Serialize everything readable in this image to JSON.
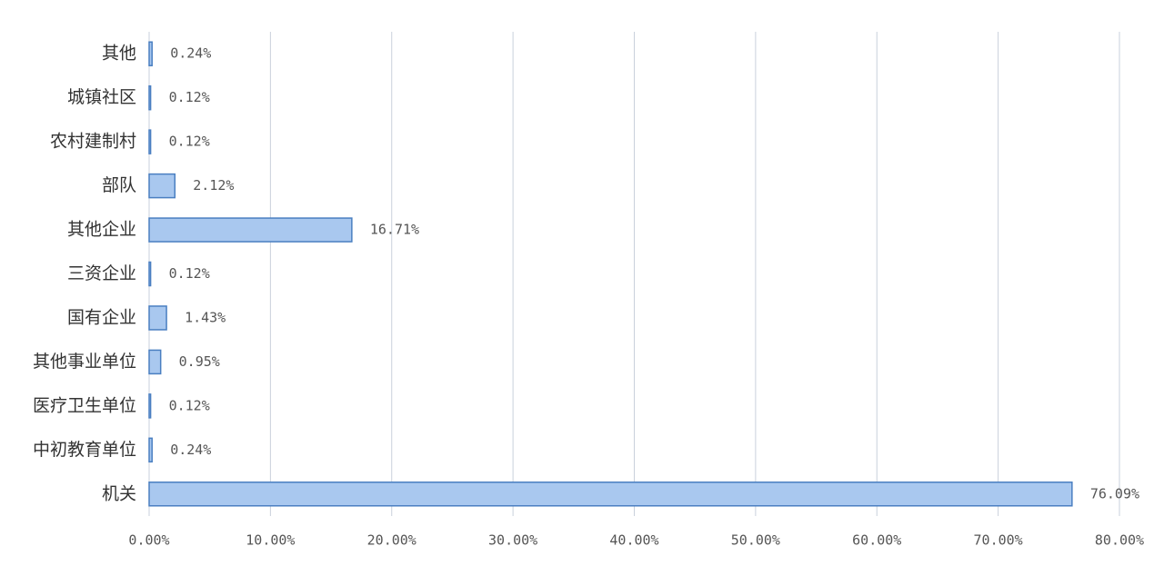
{
  "chart_data": {
    "type": "bar",
    "orientation": "horizontal",
    "categories": [
      "其他",
      "城镇社区",
      "农村建制村",
      "部队",
      "其他企业",
      "三资企业",
      "国有企业",
      "其他事业单位",
      "医疗卫生单位",
      "中初教育单位",
      "机关"
    ],
    "values": [
      0.24,
      0.12,
      0.12,
      2.12,
      16.71,
      0.12,
      1.43,
      0.95,
      0.12,
      0.24,
      76.09
    ],
    "value_labels": [
      "0.24%",
      "0.12%",
      "0.12%",
      "2.12%",
      "16.71%",
      "0.12%",
      "1.43%",
      "0.95%",
      "0.12%",
      "0.24%",
      "76.09%"
    ],
    "color": "#a9c8ef",
    "xlim": [
      0,
      80
    ],
    "xticks": [
      {
        "value": 0,
        "label": "0.00%"
      },
      {
        "value": 10,
        "label": "10.00%"
      },
      {
        "value": 20,
        "label": "20.00%"
      },
      {
        "value": 30,
        "label": "30.00%"
      },
      {
        "value": 40,
        "label": "40.00%"
      },
      {
        "value": 50,
        "label": "50.00%"
      },
      {
        "value": 60,
        "label": "60.00%"
      },
      {
        "value": 70,
        "label": "70.00%"
      },
      {
        "value": 80,
        "label": "80.00%"
      }
    ],
    "grid": true
  }
}
